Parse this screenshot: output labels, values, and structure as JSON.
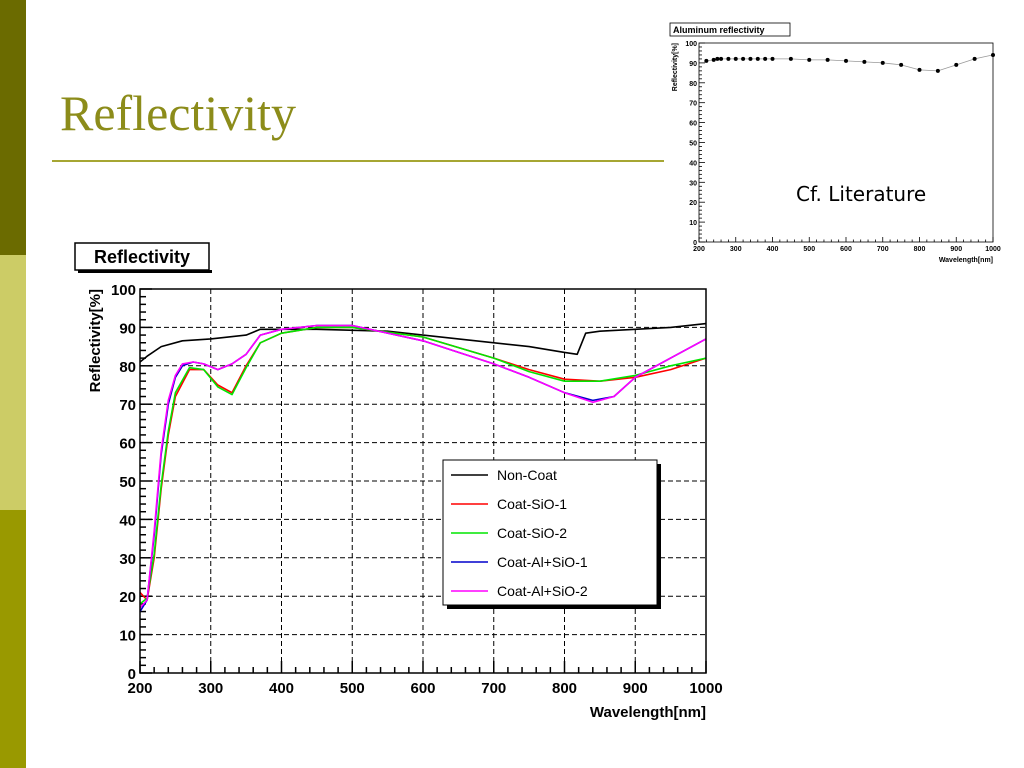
{
  "slide": {
    "title": "Reflectivity",
    "note": "Cf. Literature",
    "colors": {
      "bar_dark": "#6b6b00",
      "bar_light": "#cccc66",
      "bar_olive": "#999900",
      "title": "#8c8c1a"
    }
  },
  "chart_data": [
    {
      "type": "line",
      "title": "Reflectivity",
      "xlabel": "Wavelength[nm]",
      "ylabel": "Reflectivity[%]",
      "xlim": [
        200,
        1000
      ],
      "ylim": [
        0,
        100
      ],
      "xticks": [
        200,
        300,
        400,
        500,
        600,
        700,
        800,
        900,
        1000
      ],
      "yticks": [
        0,
        10,
        20,
        30,
        40,
        50,
        60,
        70,
        80,
        90,
        100
      ],
      "grid": true,
      "legend_position": "center-right",
      "series": [
        {
          "name": "Non-Coat",
          "color": "#000000",
          "x": [
            200,
            210,
            230,
            260,
            300,
            350,
            370,
            400,
            450,
            550,
            650,
            750,
            800,
            818,
            830,
            850,
            900,
            950,
            1000
          ],
          "y": [
            81,
            82.5,
            85,
            86.5,
            87,
            88,
            89.5,
            89.5,
            89.5,
            89,
            87,
            85,
            83.5,
            83,
            88.5,
            89,
            89.5,
            90,
            91
          ]
        },
        {
          "name": "Coat-SiO-1",
          "color": "#ff0000",
          "x": [
            200,
            210,
            220,
            230,
            240,
            250,
            270,
            290,
            310,
            330,
            350,
            370,
            400,
            450,
            500,
            600,
            700,
            750,
            800,
            850,
            900,
            950,
            1000
          ],
          "y": [
            21,
            19,
            30,
            48,
            62,
            72,
            79,
            79,
            75,
            73,
            80,
            86,
            88.5,
            90,
            90,
            87.5,
            82,
            79,
            76.5,
            76,
            77,
            79,
            82
          ]
        },
        {
          "name": "Coat-SiO-2",
          "color": "#00e600",
          "x": [
            200,
            210,
            220,
            230,
            240,
            250,
            270,
            290,
            310,
            330,
            350,
            370,
            400,
            450,
            500,
            600,
            700,
            750,
            800,
            850,
            900,
            950,
            1000
          ],
          "y": [
            18,
            19.5,
            31,
            49,
            63,
            73,
            79.5,
            79,
            74.5,
            72.5,
            79.5,
            86,
            88.5,
            90,
            90,
            87.5,
            82,
            78.5,
            76,
            76,
            77.5,
            80,
            82
          ]
        },
        {
          "name": "Coat-Al+SiO-1",
          "color": "#0000cc",
          "x": [
            200,
            210,
            220,
            230,
            240,
            250,
            260,
            275,
            290,
            310,
            330,
            350,
            370,
            400,
            450,
            500,
            600,
            700,
            750,
            800,
            840,
            870,
            900,
            950,
            1000
          ],
          "y": [
            16,
            19,
            36,
            57,
            70,
            77,
            80,
            81,
            80.5,
            79,
            80.5,
            83,
            88,
            89.5,
            90.5,
            90.5,
            86.5,
            80.5,
            77,
            73,
            71,
            72,
            77,
            82,
            87
          ]
        },
        {
          "name": "Coat-Al+SiO-2",
          "color": "#ff00ff",
          "x": [
            200,
            210,
            220,
            230,
            240,
            250,
            260,
            275,
            290,
            310,
            330,
            350,
            370,
            400,
            450,
            500,
            600,
            700,
            750,
            800,
            840,
            870,
            900,
            950,
            1000
          ],
          "y": [
            17,
            19,
            37,
            58,
            71,
            77.5,
            80.5,
            81,
            80.5,
            79,
            80.5,
            83,
            88,
            89.5,
            90.5,
            90.5,
            86.5,
            80.5,
            77,
            73,
            70.5,
            72,
            77,
            82,
            87
          ]
        }
      ]
    },
    {
      "type": "line",
      "title": "Aluminum reflectivity",
      "xlabel": "Wavelength[nm]",
      "ylabel": "Reflectivity[%]",
      "xlim": [
        200,
        1000
      ],
      "ylim": [
        0,
        100
      ],
      "xticks": [
        200,
        300,
        400,
        500,
        600,
        700,
        800,
        900,
        1000
      ],
      "yticks": [
        0,
        10,
        20,
        30,
        40,
        50,
        60,
        70,
        80,
        90,
        100
      ],
      "grid": false,
      "series": [
        {
          "color": "#000000",
          "x": [
            220,
            240,
            250,
            260,
            280,
            300,
            320,
            340,
            360,
            380,
            400,
            450,
            500,
            550,
            600,
            650,
            700,
            750,
            800,
            850,
            900,
            950,
            1000
          ],
          "y": [
            91,
            91.5,
            92,
            92,
            92,
            92,
            92,
            92,
            92,
            92,
            92,
            92,
            91.5,
            91.5,
            91,
            90.5,
            90,
            89,
            86.5,
            86,
            89,
            92,
            94
          ]
        }
      ]
    }
  ]
}
